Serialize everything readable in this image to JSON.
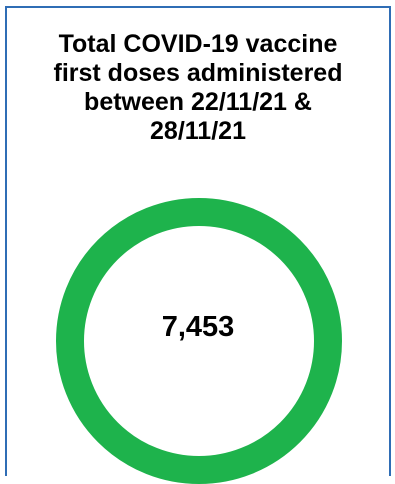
{
  "card": {
    "title_lines": [
      "Total COVID-19 vaccine",
      "first doses administered",
      "between 22/11/21 &",
      "28/11/21"
    ],
    "value": "7,453"
  },
  "colors": {
    "border": "#2f6db5",
    "ring": "#1eb34c",
    "text": "#000000"
  }
}
